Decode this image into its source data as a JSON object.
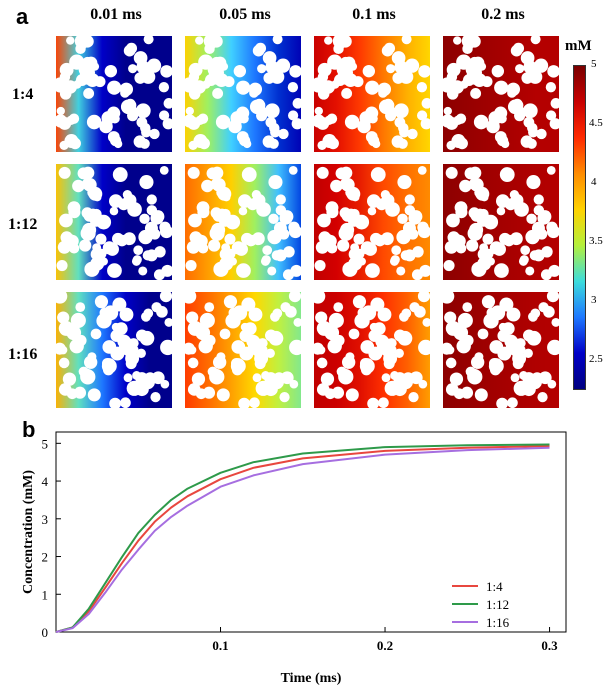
{
  "panel_a": {
    "letter": "a",
    "columns": [
      "0.01 ms",
      "0.05 ms",
      "0.1 ms",
      "0.2 ms"
    ],
    "rows": [
      "1:4",
      "1:12",
      "1:16"
    ],
    "colorbar": {
      "unit": "mM",
      "ticks": [
        "5",
        "4.5",
        "4",
        "3.5",
        "3",
        "2.5"
      ],
      "min": 2.2,
      "max": 5,
      "colors": [
        "#7a0000",
        "#c80000",
        "#ff2a00",
        "#ff8c00",
        "#ffd200",
        "#b4f03c",
        "#3cdcdc",
        "#1e78ff",
        "#0000c8",
        "#000080"
      ]
    }
  },
  "chart_data": {
    "type": "line",
    "panel_letter": "b",
    "xlabel": "Time (ms)",
    "ylabel": "Concentration (mM)",
    "xlim": [
      0,
      0.31
    ],
    "ylim": [
      0,
      5.3
    ],
    "xticks": [
      "0.1",
      "0.2",
      "0.3"
    ],
    "xtick_values": [
      0.1,
      0.2,
      0.3
    ],
    "yticks": [
      "0",
      "1",
      "2",
      "3",
      "4",
      "5"
    ],
    "ytick_values": [
      0,
      1,
      2,
      3,
      4,
      5
    ],
    "legend_position": "bottom-right",
    "series": [
      {
        "name": "1:4",
        "color": "#e8473f",
        "x": [
          0,
          0.01,
          0.02,
          0.03,
          0.04,
          0.05,
          0.06,
          0.07,
          0.08,
          0.1,
          0.12,
          0.15,
          0.2,
          0.25,
          0.3
        ],
        "y": [
          0,
          0.12,
          0.55,
          1.18,
          1.82,
          2.42,
          2.92,
          3.3,
          3.6,
          4.05,
          4.35,
          4.6,
          4.8,
          4.88,
          4.93
        ]
      },
      {
        "name": "1:12",
        "color": "#2e9a4a",
        "x": [
          0,
          0.01,
          0.02,
          0.03,
          0.04,
          0.05,
          0.06,
          0.07,
          0.08,
          0.1,
          0.12,
          0.15,
          0.2,
          0.25,
          0.3
        ],
        "y": [
          0,
          0.12,
          0.62,
          1.3,
          1.98,
          2.62,
          3.1,
          3.5,
          3.8,
          4.22,
          4.5,
          4.73,
          4.9,
          4.95,
          4.97
        ]
      },
      {
        "name": "1:16",
        "color": "#a66ee0",
        "x": [
          0,
          0.01,
          0.02,
          0.03,
          0.04,
          0.05,
          0.06,
          0.07,
          0.08,
          0.1,
          0.12,
          0.15,
          0.2,
          0.25,
          0.3
        ],
        "y": [
          0,
          0.1,
          0.48,
          1.05,
          1.65,
          2.18,
          2.68,
          3.05,
          3.35,
          3.85,
          4.15,
          4.45,
          4.7,
          4.82,
          4.88
        ]
      }
    ]
  }
}
